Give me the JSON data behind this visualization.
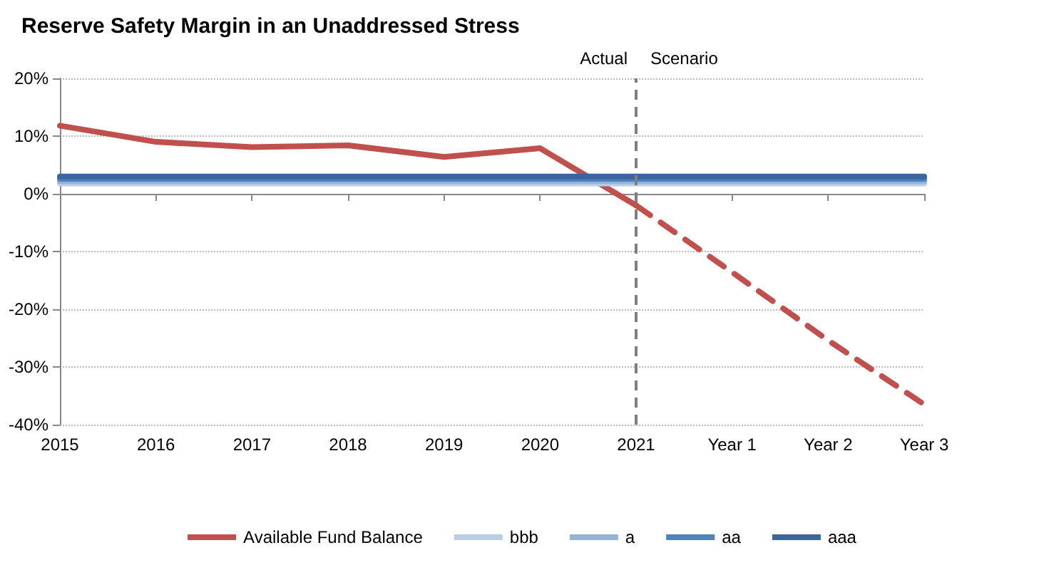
{
  "chart_data": {
    "type": "line",
    "title": "Reserve Safety Margin in an Unaddressed Stress",
    "categories": [
      "2015",
      "2016",
      "2017",
      "2018",
      "2019",
      "2020",
      "2021",
      "Year 1",
      "Year 2",
      "Year 3"
    ],
    "series": [
      {
        "name": "Available Fund Balance",
        "color": "#c0504d",
        "values": [
          11.8,
          9.0,
          8.1,
          8.4,
          6.4,
          7.9,
          -2,
          null,
          null,
          null
        ]
      },
      {
        "color": "#c0504d",
        "line_style": "dashed",
        "values": [
          null,
          null,
          null,
          null,
          null,
          null,
          -2,
          -13.6,
          -25.4,
          -36.5
        ]
      },
      {
        "name": "bbb",
        "color": "#b9cde5",
        "values": [
          1.8,
          1.8,
          1.8,
          1.8,
          1.8,
          1.8,
          1.8,
          1.8,
          1.8,
          1.8
        ]
      },
      {
        "name": "a",
        "color": "#95b3d7",
        "values": [
          2.2,
          2.2,
          2.2,
          2.2,
          2.2,
          2.2,
          2.2,
          2.2,
          2.2,
          2.2
        ]
      },
      {
        "name": "aa",
        "color": "#4f81bd",
        "values": [
          2.6,
          2.6,
          2.6,
          2.6,
          2.6,
          2.6,
          2.6,
          2.6,
          2.6,
          2.6
        ]
      },
      {
        "name": "aaa",
        "color": "#3a65a0",
        "values": [
          3.0,
          3.0,
          3.0,
          3.0,
          3.0,
          3.0,
          3.0,
          3.0,
          3.0,
          3.0
        ]
      }
    ],
    "ylim": [
      -40,
      20
    ],
    "yticks": [
      {
        "value": -40,
        "label": "-40%"
      },
      {
        "value": -30,
        "label": "-30%"
      },
      {
        "value": -20,
        "label": "-20%"
      },
      {
        "value": -10,
        "label": "-10%"
      },
      {
        "value": 0,
        "label": "0%"
      },
      {
        "value": 10,
        "label": "10%"
      },
      {
        "value": 20,
        "label": "20%"
      }
    ],
    "grid": "y",
    "legend": "bottom",
    "marker": "none",
    "line_style": "solid",
    "ref_lines": [
      {
        "axis": "x",
        "value": "2021",
        "color": "#7f7f7f",
        "line_style": "dashed"
      }
    ],
    "annotations": [
      "Actual",
      "Scenario"
    ]
  }
}
